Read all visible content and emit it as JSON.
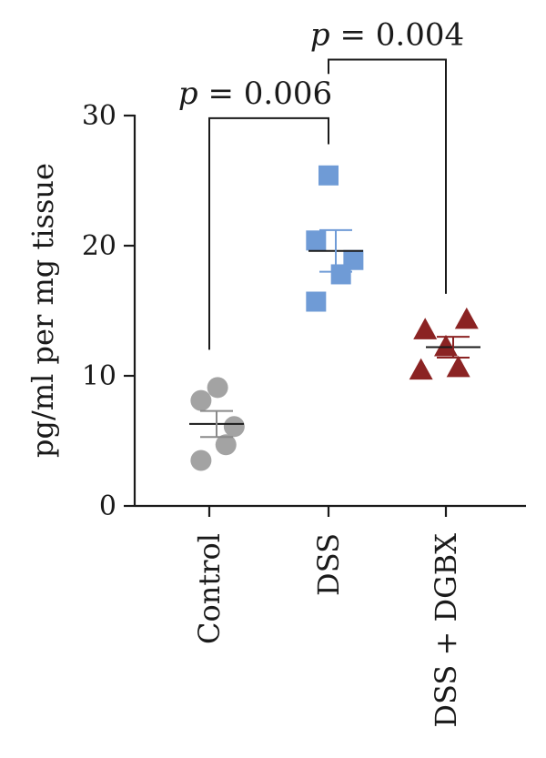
{
  "chart_data": {
    "type": "scatter",
    "title": "",
    "xlabel": "",
    "ylabel": "pg/ml per mg tissue",
    "ylim": [
      0,
      30
    ],
    "yticks": [
      0,
      10,
      20,
      30
    ],
    "grid": false,
    "categories": [
      "Control",
      "DSS",
      "DSS + DGBX"
    ],
    "series": [
      {
        "category": "Control",
        "marker": "circle",
        "color": "#a3a3a3",
        "points": [
          {
            "offset": 0.1,
            "value": 9.1
          },
          {
            "offset": -0.1,
            "value": 8.1
          },
          {
            "offset": 0.3,
            "value": 6.1
          },
          {
            "offset": 0.2,
            "value": 4.7
          },
          {
            "offset": -0.1,
            "value": 3.5
          }
        ],
        "mean": 6.3,
        "sem": 1.0
      },
      {
        "category": "DSS",
        "marker": "square",
        "color": "#6f9bd6",
        "points": [
          {
            "offset": 0.0,
            "value": 25.4
          },
          {
            "offset": -0.15,
            "value": 20.4
          },
          {
            "offset": 0.3,
            "value": 18.9
          },
          {
            "offset": 0.15,
            "value": 17.8
          },
          {
            "offset": -0.15,
            "value": 15.7
          }
        ],
        "mean": 19.6,
        "sem": 1.6
      },
      {
        "category": "DSS + DGBX",
        "marker": "triangle",
        "color": "#8b2323",
        "points": [
          {
            "offset": -0.25,
            "value": 13.5
          },
          {
            "offset": 0.25,
            "value": 14.3
          },
          {
            "offset": 0.0,
            "value": 12.2
          },
          {
            "offset": -0.3,
            "value": 10.4
          },
          {
            "offset": 0.15,
            "value": 10.6
          }
        ],
        "mean": 12.2,
        "sem": 0.8
      }
    ],
    "annotations": [
      {
        "from": "Control",
        "to": "DSS",
        "p_symbol": "p",
        "p_text": " = 0.006",
        "y_from": 12.0,
        "y_to": 29.0,
        "y_top": 29.8,
        "y_to_end": 27.8
      },
      {
        "from": "DSS",
        "to": "DSS + DGBX",
        "p_symbol": "p",
        "p_text": " = 0.004",
        "y_from": 33.2,
        "y_to": 33.2,
        "y_top": 34.3,
        "y_to_end": 16.3
      }
    ]
  }
}
